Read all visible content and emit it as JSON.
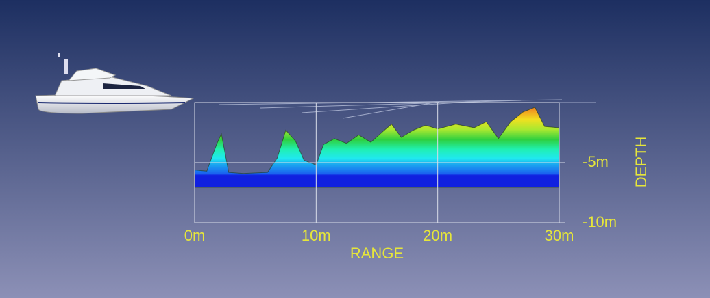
{
  "chart_data": {
    "type": "area",
    "x_label": "RANGE",
    "y_label": "DEPTH",
    "x": [
      0,
      1,
      1.8,
      2.2,
      2.8,
      4,
      6,
      6.8,
      7.5,
      8.3,
      9,
      10,
      10.6,
      11.5,
      12.5,
      13.5,
      14.5,
      15.5,
      16.2,
      17,
      18,
      19,
      20,
      21.5,
      23,
      24,
      25,
      26,
      27,
      28,
      28.8,
      30
    ],
    "values": [
      -5.6,
      -5.7,
      -3.5,
      -2.6,
      -5.8,
      -5.9,
      -5.8,
      -4.6,
      -2.3,
      -3.2,
      -4.8,
      -5.2,
      -3.5,
      -3.0,
      -3.4,
      -2.7,
      -3.3,
      -2.4,
      -1.8,
      -2.9,
      -2.3,
      -1.9,
      -2.2,
      -1.8,
      -2.1,
      -1.6,
      -3.0,
      -1.6,
      -0.8,
      -0.4,
      -2.0,
      -2.1
    ],
    "xlim": [
      0,
      30
    ],
    "ylim": [
      -10,
      0
    ],
    "xticks": [
      {
        "value": 0,
        "label": "0m"
      },
      {
        "value": 10,
        "label": "10m"
      },
      {
        "value": 20,
        "label": "20m"
      },
      {
        "value": 30,
        "label": "30m"
      }
    ],
    "yticks": [
      {
        "value": -5,
        "label": "-5m"
      },
      {
        "value": -10,
        "label": "-10m"
      }
    ],
    "grid": true
  }
}
